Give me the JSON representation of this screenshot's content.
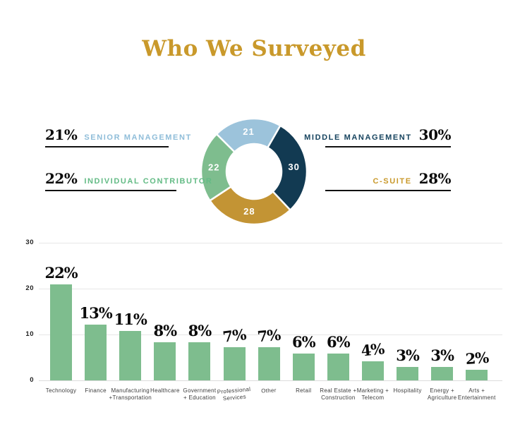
{
  "page_title": "Who We Surveyed",
  "colors": {
    "title_gold": "#C9992B",
    "callout_underline": "#111111",
    "value_text": "#0B0B0B",
    "grid_line": "#E7E7E7",
    "axis_text": "#222222",
    "category_text": "#3D3D3D",
    "background": "#FFFFFF",
    "donut_blue": "#9CC3DB",
    "donut_navy": "#123A52",
    "donut_gold": "#C39434",
    "donut_green": "#7EBD8E",
    "bar_green": "#7EBD8E"
  },
  "chart_data": [
    {
      "type": "pie",
      "variant": "donut",
      "title": "Who We Surveyed",
      "start_angle_deg": -45,
      "clockwise": true,
      "segments": [
        {
          "label": "SENIOR MANAGEMENT",
          "value": 21,
          "ring_label": "21",
          "display": "21%",
          "color": "#9CC3DB",
          "label_color": "#8FBDD9",
          "callout": "left-top"
        },
        {
          "label": "MIDDLE MANAGEMENT",
          "value": 30,
          "ring_label": "30",
          "display": "30%",
          "color": "#123A52",
          "label_color": "#17445F",
          "callout": "right-top"
        },
        {
          "label": "C-SUITE",
          "value": 28,
          "ring_label": "28",
          "display": "28%",
          "color": "#C39434",
          "label_color": "#C9992B",
          "callout": "right-bottom"
        },
        {
          "label": "INDIVIDUAL CONTRIBUTOR",
          "value": 22,
          "ring_label": "22",
          "display": "22%",
          "color": "#7EBD8E",
          "label_color": "#63BB85",
          "callout": "left-bottom"
        }
      ]
    },
    {
      "type": "bar",
      "bar_color": "#7EBD8E",
      "ylim": [
        0,
        30
      ],
      "yticks": [
        0,
        10,
        20,
        30
      ],
      "grid": true,
      "legend": false,
      "categories": [
        "Technology",
        "Finance",
        "Manufacturing +Transportation",
        "Healthcare",
        "Government + Education",
        "Professional Services",
        "Other",
        "Retail",
        "Real Estate + Construction",
        "Marketing + Telecom",
        "Hospitality",
        "Energy + Agriculture",
        "Arts + Entertainment"
      ],
      "category_lines": [
        [
          "Technology"
        ],
        [
          "Finance"
        ],
        [
          "Manufacturing",
          "+Transportation"
        ],
        [
          "Healthcare"
        ],
        [
          "Government",
          "+ Education"
        ],
        [
          "Professional",
          "Services"
        ],
        [
          "Other"
        ],
        [
          "Retail"
        ],
        [
          "Real Estate +",
          "Construction"
        ],
        [
          "Marketing +",
          "Telecom"
        ],
        [
          "Hospitality"
        ],
        [
          "Energy +",
          "Agriculture"
        ],
        [
          "Arts +",
          "Entertainment"
        ]
      ],
      "values": [
        22,
        13,
        11,
        8,
        8,
        7,
        7,
        6,
        6,
        4,
        3,
        3,
        2
      ],
      "value_labels": [
        "22%",
        "13%",
        "11%",
        "8%",
        "8%",
        "7%",
        "7%",
        "6%",
        "6%",
        "4%",
        "3%",
        "3%",
        "2%"
      ],
      "bar_heights_as_drawn": [
        21,
        12.2,
        10.8,
        8.3,
        8.3,
        7.2,
        7.2,
        5.8,
        5.8,
        4.2,
        2.9,
        2.9,
        2.3
      ]
    }
  ]
}
